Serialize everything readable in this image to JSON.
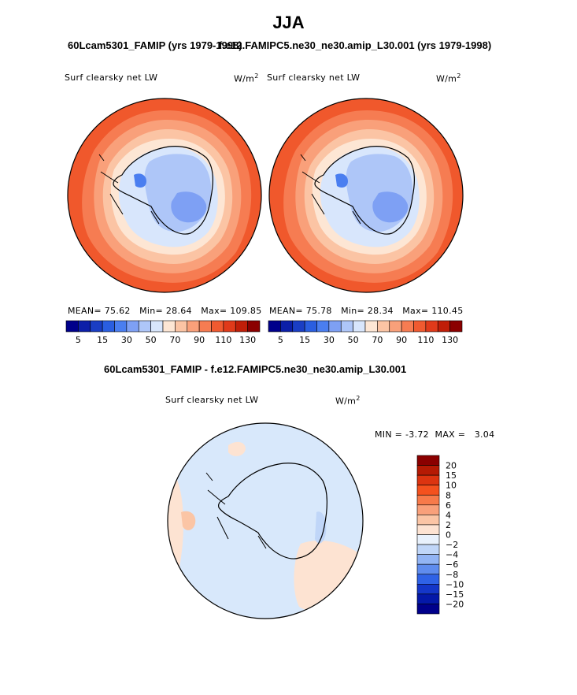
{
  "figure": {
    "season": "JJA",
    "left_case_title": "60Lcam5301_FAMIP (yrs 1979-1998)",
    "right_case_title": "f.e12.FAMIPC5.ne30_ne30.amip_L30.001 (yrs 1979-1998)",
    "diff_title": "60Lcam5301_FAMIP - f.e12.FAMIPC5.ne30_ne30.amip_L30.001"
  },
  "chart_data": [
    {
      "type": "heatmap",
      "projection": "south-polar-stereographic",
      "title": "Surf clearsky net LW",
      "units": "W/m",
      "units_exp": "2",
      "stats": {
        "mean_label": "MEAN=",
        "mean": "75.62",
        "min_label": "Min=",
        "min": "28.64",
        "max_label": "Max=",
        "max": "109.85"
      },
      "colorbar": {
        "levels": [
          "5",
          "15",
          "30",
          "50",
          "70",
          "90",
          "110",
          "130"
        ],
        "colors": [
          "#00008b",
          "#0c1fa8",
          "#1a3ec4",
          "#2a5ee0",
          "#4a7ef0",
          "#7ea0f4",
          "#aec6f8",
          "#d8e6fc",
          "#fde6d4",
          "#fbc4a4",
          "#f9a07a",
          "#f67c52",
          "#f05a30",
          "#e03a1a",
          "#c01e08",
          "#8b0000"
        ]
      }
    },
    {
      "type": "heatmap",
      "projection": "south-polar-stereographic",
      "title": "Surf clearsky net LW",
      "units": "W/m",
      "units_exp": "2",
      "stats": {
        "mean_label": "MEAN=",
        "mean": "75.78",
        "min_label": "Min=",
        "min": "28.34",
        "max_label": "Max=",
        "max": "110.45"
      },
      "colorbar": {
        "levels": [
          "5",
          "15",
          "30",
          "50",
          "70",
          "90",
          "110",
          "130"
        ],
        "colors": [
          "#00008b",
          "#0c1fa8",
          "#1a3ec4",
          "#2a5ee0",
          "#4a7ef0",
          "#7ea0f4",
          "#aec6f8",
          "#d8e6fc",
          "#fde6d4",
          "#fbc4a4",
          "#f9a07a",
          "#f67c52",
          "#f05a30",
          "#e03a1a",
          "#c01e08",
          "#8b0000"
        ]
      }
    },
    {
      "type": "heatmap",
      "projection": "south-polar-stereographic",
      "title": "Surf clearsky net LW",
      "units": "W/m",
      "units_exp": "2",
      "stats": {
        "min_label": "MIN =",
        "min": "-3.72",
        "max_label": "MAX =",
        "max": "3.04"
      },
      "colorbar": {
        "levels": [
          "20",
          "15",
          "10",
          "8",
          "6",
          "4",
          "2",
          "0",
          "−2",
          "−4",
          "−6",
          "−8",
          "−10",
          "−15",
          "−20"
        ],
        "colors": [
          "#8b0000",
          "#b51a04",
          "#dc3410",
          "#f4511e",
          "#f77a4a",
          "#f9a07a",
          "#fbc5a5",
          "#fde3d2",
          "#e8f1fc",
          "#c0d6f8",
          "#92b4f4",
          "#5f8cee",
          "#2f62e6",
          "#1436c8",
          "#0418a8",
          "#00008b"
        ]
      }
    }
  ]
}
